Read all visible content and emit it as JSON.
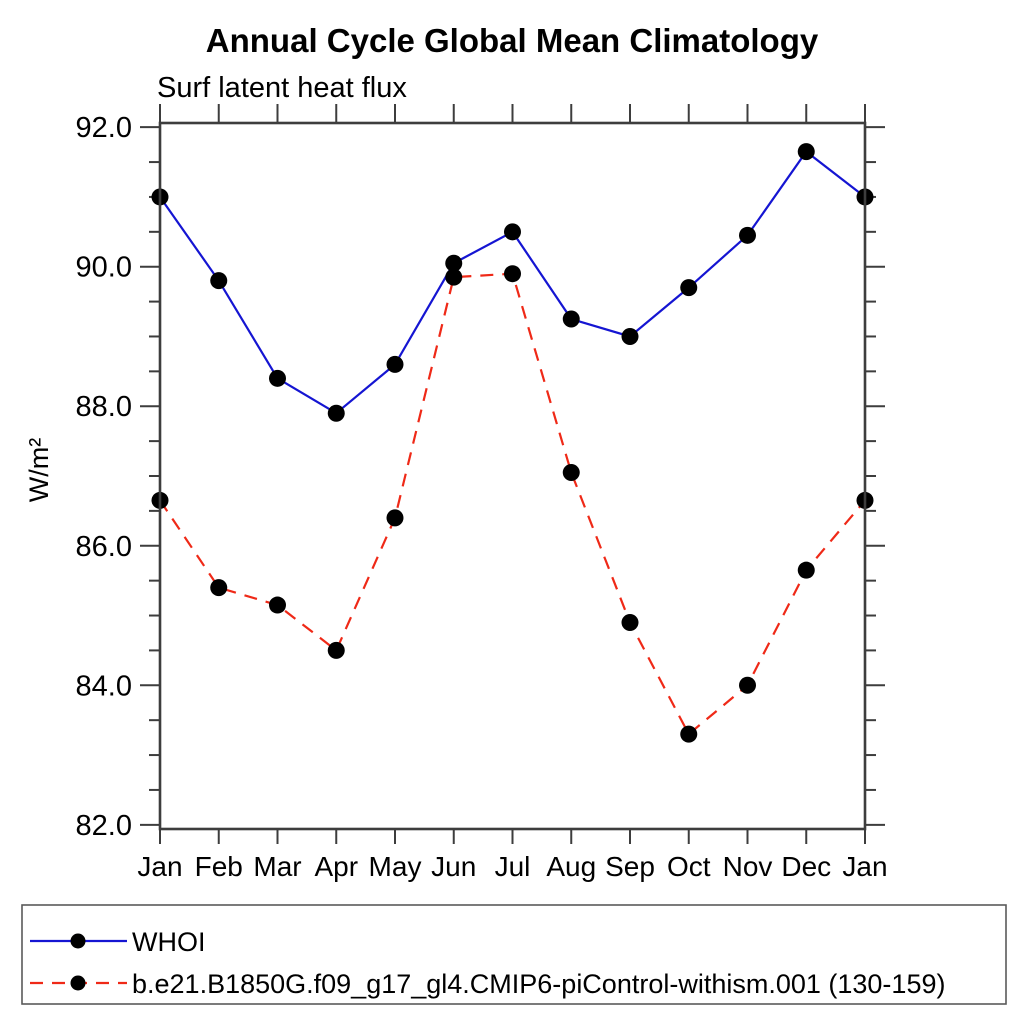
{
  "chart_data": {
    "type": "line",
    "title": "Annual Cycle Global Mean Climatology",
    "subtitle": "Surf latent heat flux",
    "ylabel": "W/m²",
    "xlabel": "",
    "categories": [
      "Jan",
      "Feb",
      "Mar",
      "Apr",
      "May",
      "Jun",
      "Jul",
      "Aug",
      "Sep",
      "Oct",
      "Nov",
      "Dec",
      "Jan"
    ],
    "ylim": [
      81.9,
      92.1
    ],
    "yticks_major": [
      82.0,
      84.0,
      86.0,
      88.0,
      90.0,
      92.0
    ],
    "ytick_label_format": "one-decimal",
    "ytick_minor_interval": 0.5,
    "grid": "off",
    "legend_position": "bottom-box",
    "series": [
      {
        "name": "WHOI",
        "color": "#1515d2",
        "line_style": "solid",
        "marker": "black-dot",
        "values": [
          91.0,
          89.8,
          88.4,
          87.9,
          88.6,
          90.05,
          90.5,
          89.25,
          89.0,
          89.7,
          90.45,
          91.65,
          91.0
        ]
      },
      {
        "name": "b.e21.B1850G.f09_g17_gl4.CMIP6-piControl-withism.001 (130-159)",
        "color": "#ef2917",
        "line_style": "dashed",
        "marker": "black-dot",
        "values": [
          86.65,
          85.4,
          85.15,
          84.5,
          86.4,
          89.85,
          89.9,
          87.05,
          84.9,
          83.3,
          84.0,
          85.65,
          86.65
        ]
      }
    ],
    "marker_color": "#000000",
    "axis_color": "#3d3d3d"
  }
}
